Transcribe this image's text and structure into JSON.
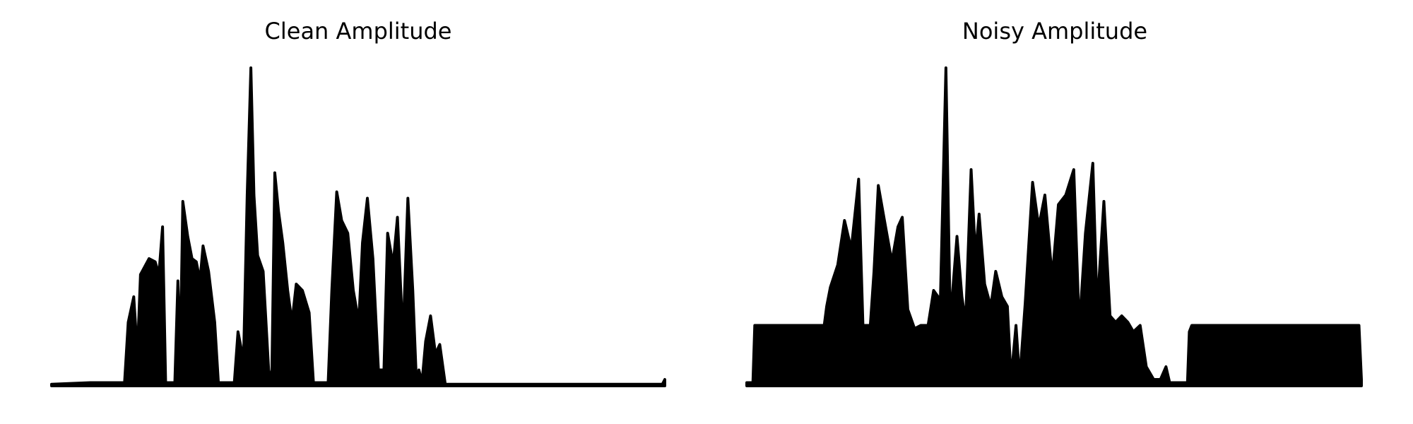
{
  "chart_data": [
    {
      "type": "area",
      "title": "Clean Amplitude",
      "color": "#000000",
      "xlim": [
        0,
        100
      ],
      "ylim": [
        0,
        1
      ],
      "x": [
        0,
        6.3,
        11.9,
        12.5,
        13.4,
        14,
        14.5,
        15.9,
        16.9,
        17.5,
        18.1,
        18.6,
        20.1,
        20.6,
        21,
        21.4,
        22.2,
        22.9,
        23.6,
        24.2,
        24.7,
        25.6,
        26.6,
        27.2,
        29.8,
        30.4,
        31.3,
        31.9,
        32.5,
        33,
        33.6,
        34.5,
        35.4,
        35.9,
        36.4,
        37,
        37.7,
        38.5,
        39.2,
        39.9,
        40.9,
        42,
        42.7,
        45.1,
        45.7,
        46.5,
        47.3,
        48.3,
        49.2,
        50.1,
        50.7,
        51.5,
        52.4,
        53.3,
        54.2,
        54.8,
        55.7,
        56.4,
        57.3,
        58.1,
        58.9,
        59.5,
        59.9,
        60.4,
        61,
        61.8,
        62.6,
        63.3,
        64.2,
        79.7,
        99.6,
        100
      ],
      "values": [
        0.005,
        0.01,
        0.01,
        0.2,
        0.28,
        0.1,
        0.35,
        0.4,
        0.39,
        0.35,
        0.5,
        0.01,
        0.01,
        0.33,
        0.1,
        0.58,
        0.47,
        0.4,
        0.39,
        0.33,
        0.44,
        0.36,
        0.2,
        0.01,
        0.01,
        0.17,
        0.08,
        0.6,
        1.0,
        0.6,
        0.41,
        0.36,
        0.05,
        0.01,
        0.67,
        0.55,
        0.45,
        0.3,
        0.2,
        0.32,
        0.3,
        0.23,
        0.01,
        0.01,
        0.3,
        0.61,
        0.52,
        0.48,
        0.3,
        0.2,
        0.45,
        0.59,
        0.4,
        0.05,
        0.05,
        0.48,
        0.38,
        0.53,
        0.15,
        0.59,
        0.3,
        0.01,
        0.05,
        0.01,
        0.14,
        0.22,
        0.1,
        0.13,
        0.005,
        0.005,
        0.005,
        0.02
      ]
    },
    {
      "type": "area",
      "title": "Noisy Amplitude",
      "color": "#000000",
      "xlim": [
        0,
        100
      ],
      "ylim": [
        0,
        1
      ],
      "x": [
        0,
        1,
        1.3,
        12.6,
        13,
        13.6,
        14.8,
        15.9,
        17,
        18.2,
        18.9,
        20.1,
        20.7,
        21.4,
        22.4,
        23.6,
        24.6,
        25.3,
        26.2,
        27.3,
        28.3,
        29.5,
        30.4,
        31.5,
        32.4,
        33.1,
        34.2,
        35,
        35.6,
        36.5,
        37.2,
        37.8,
        38.7,
        39.7,
        40.5,
        41.5,
        42.4,
        43,
        43.8,
        44.4,
        45.3,
        46.5,
        47.5,
        48.5,
        49.7,
        50.7,
        51.9,
        53.2,
        54.1,
        55.1,
        56.3,
        57,
        58.1,
        59.1,
        60,
        61,
        62,
        62.9,
        64,
        65,
        66.2,
        67.3,
        68.2,
        68.8,
        71.7,
        72,
        72.4,
        99.6,
        100
      ],
      "values": [
        0.01,
        0.01,
        0.19,
        0.19,
        0.25,
        0.31,
        0.38,
        0.52,
        0.43,
        0.65,
        0.19,
        0.19,
        0.36,
        0.63,
        0.52,
        0.39,
        0.5,
        0.53,
        0.24,
        0.18,
        0.19,
        0.19,
        0.3,
        0.27,
        1.0,
        0.2,
        0.47,
        0.28,
        0.2,
        0.68,
        0.41,
        0.54,
        0.32,
        0.25,
        0.36,
        0.28,
        0.25,
        0.02,
        0.19,
        0.02,
        0.26,
        0.64,
        0.5,
        0.6,
        0.34,
        0.57,
        0.6,
        0.68,
        0.18,
        0.48,
        0.7,
        0.24,
        0.58,
        0.22,
        0.2,
        0.22,
        0.2,
        0.17,
        0.19,
        0.06,
        0.02,
        0.02,
        0.06,
        0.01,
        0.01,
        0.17,
        0.19,
        0.19,
        0.02
      ]
    }
  ]
}
